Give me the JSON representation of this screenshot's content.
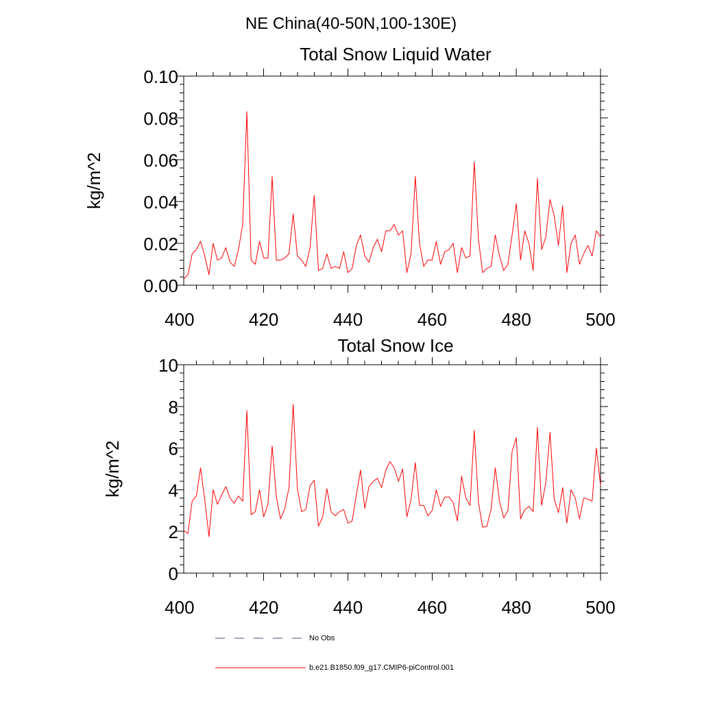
{
  "figure": {
    "main_title": "NE China(40-50N,100-130E)"
  },
  "legend": {
    "entries": [
      {
        "label": "No Obs",
        "color": "#4a4a7a",
        "style": "dashed"
      },
      {
        "label": "b.e21.B1850.f09_g17.CMIP6-piControl.001",
        "color": "#ff0000",
        "style": "solid"
      }
    ]
  },
  "chart_data": [
    {
      "type": "line",
      "title": "Total Snow Liquid Water",
      "xlabel": "",
      "ylabel": "kg/m^2",
      "xlim": [
        401,
        500
      ],
      "ylim": [
        0,
        0.1
      ],
      "xticks": [
        400,
        420,
        440,
        460,
        480,
        500
      ],
      "xtick_labels": [
        "400",
        "420",
        "440",
        "460",
        "480",
        "500"
      ],
      "yticks": [
        0,
        0.02,
        0.04,
        0.06,
        0.08,
        0.1
      ],
      "ytick_labels": [
        "0.00",
        "0.02",
        "0.04",
        "0.06",
        "0.08",
        "0.10"
      ],
      "series": [
        {
          "name": "b.e21.B1850.f09_g17.CMIP6-piControl.001",
          "color": "#ff0000",
          "x_start": 401,
          "values": [
            0.003,
            0.005,
            0.015,
            0.017,
            0.021,
            0.014,
            0.005,
            0.02,
            0.012,
            0.013,
            0.018,
            0.011,
            0.009,
            0.017,
            0.029,
            0.083,
            0.012,
            0.01,
            0.021,
            0.013,
            0.013,
            0.052,
            0.012,
            0.012,
            0.013,
            0.015,
            0.034,
            0.014,
            0.012,
            0.009,
            0.018,
            0.043,
            0.007,
            0.008,
            0.015,
            0.008,
            0.009,
            0.008,
            0.016,
            0.006,
            0.008,
            0.019,
            0.024,
            0.014,
            0.011,
            0.018,
            0.022,
            0.016,
            0.026,
            0.026,
            0.029,
            0.024,
            0.026,
            0.006,
            0.015,
            0.052,
            0.02,
            0.009,
            0.012,
            0.012,
            0.021,
            0.01,
            0.016,
            0.017,
            0.02,
            0.006,
            0.018,
            0.013,
            0.014,
            0.059,
            0.022,
            0.006,
            0.008,
            0.009,
            0.024,
            0.014,
            0.007,
            0.01,
            0.024,
            0.039,
            0.012,
            0.026,
            0.02,
            0.007,
            0.051,
            0.017,
            0.023,
            0.041,
            0.033,
            0.019,
            0.038,
            0.006,
            0.02,
            0.024,
            0.01,
            0.015,
            0.019,
            0.014,
            0.026,
            0.023
          ]
        }
      ]
    },
    {
      "type": "line",
      "title": "Total Snow Ice",
      "xlabel": "",
      "ylabel": "kg/m^2",
      "xlim": [
        401,
        500
      ],
      "ylim": [
        0,
        10
      ],
      "xticks": [
        400,
        420,
        440,
        460,
        480,
        500
      ],
      "xtick_labels": [
        "400",
        "420",
        "440",
        "460",
        "480",
        "500"
      ],
      "yticks": [
        0,
        2,
        4,
        6,
        8,
        10
      ],
      "ytick_labels": [
        "0",
        "2",
        "4",
        "6",
        "8",
        "10"
      ],
      "series": [
        {
          "name": "b.e21.B1850.f09_g17.CMIP6-piControl.001",
          "color": "#ff0000",
          "x_start": 401,
          "values": [
            2.05,
            1.9,
            3.45,
            3.7,
            5.05,
            3.5,
            1.75,
            4.0,
            3.3,
            3.75,
            4.15,
            3.6,
            3.35,
            3.7,
            3.45,
            7.8,
            2.8,
            2.95,
            4.0,
            2.7,
            3.3,
            6.1,
            3.65,
            2.6,
            3.1,
            4.1,
            8.1,
            4.05,
            2.95,
            3.05,
            4.2,
            4.45,
            2.25,
            2.7,
            4.05,
            2.95,
            2.75,
            2.95,
            3.05,
            2.4,
            2.5,
            3.75,
            4.95,
            3.1,
            4.15,
            4.4,
            4.55,
            4.1,
            4.95,
            5.35,
            5.05,
            4.4,
            5.0,
            2.7,
            3.55,
            5.3,
            3.25,
            3.25,
            2.75,
            3.0,
            4.0,
            3.2,
            3.65,
            3.65,
            3.4,
            2.5,
            4.65,
            3.6,
            3.25,
            6.85,
            3.4,
            2.2,
            2.25,
            3.05,
            5.05,
            3.45,
            2.65,
            3.0,
            5.85,
            6.5,
            2.6,
            3.05,
            3.2,
            2.95,
            7.0,
            3.25,
            4.35,
            6.75,
            3.55,
            2.9,
            4.1,
            2.4,
            4.0,
            3.6,
            2.6,
            3.6,
            3.55,
            3.45,
            6.0,
            4.2
          ]
        }
      ]
    }
  ]
}
